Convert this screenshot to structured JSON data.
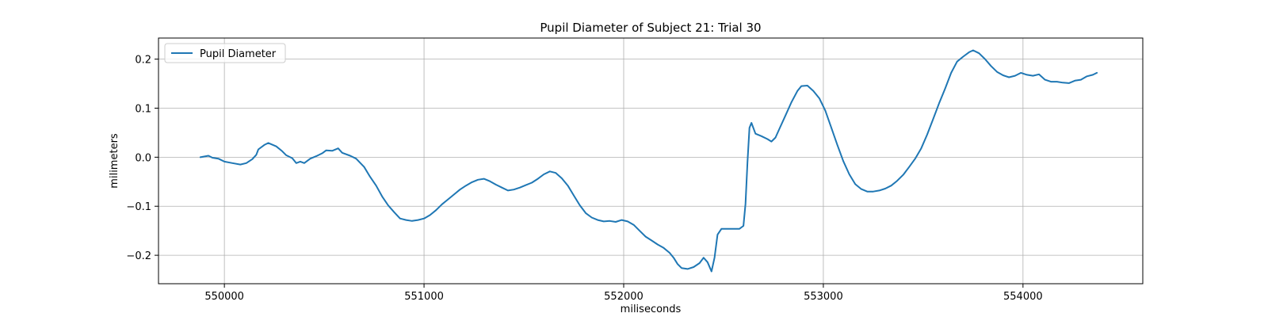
{
  "chart_data": {
    "type": "line",
    "title": "Pupil Diameter of Subject 21: Trial 30",
    "xlabel": "miliseconds",
    "ylabel": "milimeters",
    "xlim": [
      549670,
      554600
    ],
    "ylim": [
      -0.258,
      0.243
    ],
    "xticks": [
      550000,
      551000,
      552000,
      553000,
      554000
    ],
    "xtick_labels": [
      "550000",
      "551000",
      "552000",
      "553000",
      "554000"
    ],
    "yticks": [
      -0.2,
      -0.1,
      0.0,
      0.1,
      0.2
    ],
    "ytick_labels": [
      "−0.2",
      "−0.1",
      "0.0",
      "0.1",
      "0.2"
    ],
    "grid": true,
    "legend_position": "upper-left",
    "series": [
      {
        "name": "Pupil Diameter",
        "color": "#1f77b4",
        "points": [
          [
            549880,
            0.0
          ],
          [
            549920,
            0.003
          ],
          [
            549940,
            -0.001
          ],
          [
            549970,
            -0.003
          ],
          [
            550000,
            -0.009
          ],
          [
            550040,
            -0.012
          ],
          [
            550080,
            -0.015
          ],
          [
            550110,
            -0.012
          ],
          [
            550140,
            -0.004
          ],
          [
            550160,
            0.005
          ],
          [
            550170,
            0.016
          ],
          [
            550200,
            0.025
          ],
          [
            550220,
            0.029
          ],
          [
            550260,
            0.022
          ],
          [
            550290,
            0.012
          ],
          [
            550310,
            0.004
          ],
          [
            550340,
            -0.002
          ],
          [
            550360,
            -0.012
          ],
          [
            550380,
            -0.009
          ],
          [
            550400,
            -0.012
          ],
          [
            550430,
            -0.003
          ],
          [
            550460,
            0.002
          ],
          [
            550490,
            0.008
          ],
          [
            550510,
            0.014
          ],
          [
            550540,
            0.013
          ],
          [
            550570,
            0.018
          ],
          [
            550590,
            0.009
          ],
          [
            550630,
            0.003
          ],
          [
            550660,
            -0.003
          ],
          [
            550700,
            -0.02
          ],
          [
            550730,
            -0.04
          ],
          [
            550760,
            -0.058
          ],
          [
            550790,
            -0.08
          ],
          [
            550820,
            -0.098
          ],
          [
            550850,
            -0.112
          ],
          [
            550880,
            -0.125
          ],
          [
            550910,
            -0.128
          ],
          [
            550940,
            -0.13
          ],
          [
            550970,
            -0.128
          ],
          [
            551000,
            -0.125
          ],
          [
            551030,
            -0.118
          ],
          [
            551060,
            -0.108
          ],
          [
            551090,
            -0.096
          ],
          [
            551120,
            -0.086
          ],
          [
            551150,
            -0.076
          ],
          [
            551180,
            -0.066
          ],
          [
            551210,
            -0.058
          ],
          [
            551240,
            -0.051
          ],
          [
            551270,
            -0.046
          ],
          [
            551300,
            -0.044
          ],
          [
            551330,
            -0.049
          ],
          [
            551360,
            -0.056
          ],
          [
            551390,
            -0.062
          ],
          [
            551420,
            -0.068
          ],
          [
            551450,
            -0.066
          ],
          [
            551480,
            -0.062
          ],
          [
            551510,
            -0.057
          ],
          [
            551540,
            -0.052
          ],
          [
            551570,
            -0.044
          ],
          [
            551600,
            -0.035
          ],
          [
            551630,
            -0.029
          ],
          [
            551660,
            -0.032
          ],
          [
            551690,
            -0.043
          ],
          [
            551720,
            -0.058
          ],
          [
            551750,
            -0.078
          ],
          [
            551780,
            -0.098
          ],
          [
            551810,
            -0.114
          ],
          [
            551840,
            -0.123
          ],
          [
            551870,
            -0.128
          ],
          [
            551900,
            -0.131
          ],
          [
            551930,
            -0.13
          ],
          [
            551960,
            -0.132
          ],
          [
            551990,
            -0.128
          ],
          [
            552020,
            -0.131
          ],
          [
            552050,
            -0.138
          ],
          [
            552080,
            -0.15
          ],
          [
            552110,
            -0.162
          ],
          [
            552140,
            -0.17
          ],
          [
            552170,
            -0.178
          ],
          [
            552200,
            -0.185
          ],
          [
            552230,
            -0.195
          ],
          [
            552250,
            -0.205
          ],
          [
            552270,
            -0.218
          ],
          [
            552290,
            -0.226
          ],
          [
            552320,
            -0.228
          ],
          [
            552350,
            -0.224
          ],
          [
            552380,
            -0.216
          ],
          [
            552400,
            -0.205
          ],
          [
            552420,
            -0.214
          ],
          [
            552440,
            -0.233
          ],
          [
            552455,
            -0.205
          ],
          [
            552470,
            -0.158
          ],
          [
            552490,
            -0.146
          ],
          [
            552520,
            -0.146
          ],
          [
            552550,
            -0.146
          ],
          [
            552580,
            -0.146
          ],
          [
            552600,
            -0.14
          ],
          [
            552610,
            -0.095
          ],
          [
            552620,
            -0.01
          ],
          [
            552630,
            0.06
          ],
          [
            552640,
            0.07
          ],
          [
            552660,
            0.048
          ],
          [
            552690,
            0.043
          ],
          [
            552720,
            0.037
          ],
          [
            552740,
            0.032
          ],
          [
            552760,
            0.04
          ],
          [
            552780,
            0.058
          ],
          [
            552810,
            0.085
          ],
          [
            552840,
            0.112
          ],
          [
            552870,
            0.135
          ],
          [
            552890,
            0.145
          ],
          [
            552920,
            0.146
          ],
          [
            552950,
            0.135
          ],
          [
            552980,
            0.12
          ],
          [
            553010,
            0.095
          ],
          [
            553040,
            0.06
          ],
          [
            553070,
            0.025
          ],
          [
            553100,
            -0.008
          ],
          [
            553130,
            -0.035
          ],
          [
            553160,
            -0.055
          ],
          [
            553190,
            -0.065
          ],
          [
            553220,
            -0.07
          ],
          [
            553250,
            -0.07
          ],
          [
            553280,
            -0.068
          ],
          [
            553310,
            -0.064
          ],
          [
            553340,
            -0.058
          ],
          [
            553370,
            -0.048
          ],
          [
            553400,
            -0.036
          ],
          [
            553430,
            -0.02
          ],
          [
            553460,
            -0.003
          ],
          [
            553490,
            0.018
          ],
          [
            553520,
            0.046
          ],
          [
            553550,
            0.078
          ],
          [
            553580,
            0.11
          ],
          [
            553610,
            0.14
          ],
          [
            553640,
            0.172
          ],
          [
            553670,
            0.195
          ],
          [
            553700,
            0.205
          ],
          [
            553730,
            0.214
          ],
          [
            553750,
            0.218
          ],
          [
            553780,
            0.212
          ],
          [
            553810,
            0.2
          ],
          [
            553840,
            0.186
          ],
          [
            553870,
            0.174
          ],
          [
            553900,
            0.167
          ],
          [
            553930,
            0.163
          ],
          [
            553960,
            0.166
          ],
          [
            553990,
            0.172
          ],
          [
            554020,
            0.168
          ],
          [
            554050,
            0.166
          ],
          [
            554080,
            0.169
          ],
          [
            554110,
            0.158
          ],
          [
            554140,
            0.154
          ],
          [
            554170,
            0.154
          ],
          [
            554200,
            0.152
          ],
          [
            554230,
            0.151
          ],
          [
            554260,
            0.156
          ],
          [
            554290,
            0.158
          ],
          [
            554320,
            0.165
          ],
          [
            554350,
            0.168
          ],
          [
            554370,
            0.172
          ]
        ]
      }
    ]
  }
}
